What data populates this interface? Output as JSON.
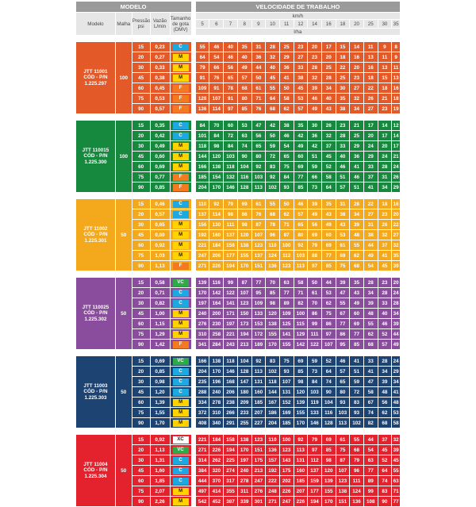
{
  "header": {
    "modelo_title": "MODELO",
    "velocidade_title": "VELOCIDADE DE TRABALHO",
    "col_modelo": "Modelo",
    "col_malha": "Malha",
    "col_pressao": "Pressão psi",
    "col_vazao": "Vazão L/min",
    "col_gota": "Tamanho de gota (DMV)",
    "speed_unit": "km/h",
    "rate_unit": "l/ha",
    "speeds": [
      "5",
      "6",
      "7",
      "8",
      "9",
      "10",
      "11",
      "12",
      "14",
      "16",
      "18",
      "20",
      "25",
      "30",
      "35"
    ]
  },
  "colors": {
    "droplet": {
      "XC": "#ffffff",
      "VC": "#2eaa48",
      "C": "#1ea8e0",
      "M": "#ffd200",
      "F": "#f47a21"
    },
    "droplet_text": {
      "XC": "#222222",
      "VC": "#ffffff",
      "C": "#ffffff",
      "M": "#222222",
      "F": "#ffffff"
    }
  },
  "groups": [
    {
      "model": "JTT 11001 CÓD - P/N 1.225.297",
      "malha": "100",
      "color": "#e35a28",
      "rows": [
        {
          "psi": "15",
          "lmin": "0,23",
          "gota": "C",
          "values": [
            "55",
            "46",
            "40",
            "35",
            "31",
            "28",
            "25",
            "23",
            "20",
            "17",
            "15",
            "14",
            "11",
            "9",
            "8"
          ]
        },
        {
          "psi": "20",
          "lmin": "0,27",
          "gota": "M",
          "values": [
            "64",
            "54",
            "46",
            "40",
            "36",
            "32",
            "29",
            "27",
            "23",
            "20",
            "18",
            "16",
            "13",
            "11",
            "9"
          ]
        },
        {
          "psi": "30",
          "lmin": "0,33",
          "gota": "M",
          "values": [
            "79",
            "66",
            "56",
            "49",
            "44",
            "40",
            "36",
            "33",
            "28",
            "25",
            "22",
            "20",
            "16",
            "13",
            "11"
          ]
        },
        {
          "psi": "45",
          "lmin": "0,38",
          "gota": "M",
          "values": [
            "91",
            "76",
            "65",
            "57",
            "50",
            "45",
            "41",
            "38",
            "32",
            "28",
            "25",
            "23",
            "18",
            "15",
            "13"
          ]
        },
        {
          "psi": "60",
          "lmin": "0,45",
          "gota": "F",
          "values": [
            "109",
            "91",
            "78",
            "68",
            "61",
            "55",
            "50",
            "45",
            "39",
            "34",
            "30",
            "27",
            "22",
            "18",
            "16"
          ]
        },
        {
          "psi": "75",
          "lmin": "0,53",
          "gota": "F",
          "values": [
            "128",
            "107",
            "91",
            "80",
            "71",
            "64",
            "58",
            "53",
            "46",
            "40",
            "35",
            "32",
            "26",
            "21",
            "18"
          ]
        },
        {
          "psi": "90",
          "lmin": "0,57",
          "gota": "F",
          "values": [
            "136",
            "114",
            "97",
            "85",
            "76",
            "68",
            "62",
            "57",
            "49",
            "43",
            "38",
            "34",
            "27",
            "23",
            "19"
          ]
        }
      ]
    },
    {
      "model": "JTT 110015 CÓD - P/N 1.225.300",
      "malha": "100",
      "color": "#17893e",
      "rows": [
        {
          "psi": "15",
          "lmin": "0,35",
          "gota": "C",
          "values": [
            "84",
            "70",
            "60",
            "53",
            "47",
            "42",
            "38",
            "35",
            "30",
            "26",
            "23",
            "21",
            "17",
            "14",
            "12"
          ]
        },
        {
          "psi": "20",
          "lmin": "0,42",
          "gota": "C",
          "values": [
            "101",
            "84",
            "72",
            "63",
            "56",
            "50",
            "46",
            "42",
            "36",
            "32",
            "28",
            "25",
            "20",
            "17",
            "14"
          ]
        },
        {
          "psi": "30",
          "lmin": "0,49",
          "gota": "M",
          "values": [
            "118",
            "98",
            "84",
            "74",
            "65",
            "59",
            "54",
            "49",
            "42",
            "37",
            "33",
            "29",
            "24",
            "20",
            "17"
          ]
        },
        {
          "psi": "45",
          "lmin": "0,60",
          "gota": "M",
          "values": [
            "144",
            "120",
            "103",
            "90",
            "80",
            "72",
            "65",
            "60",
            "51",
            "45",
            "40",
            "36",
            "29",
            "24",
            "21"
          ]
        },
        {
          "psi": "60",
          "lmin": "0,69",
          "gota": "M",
          "values": [
            "166",
            "138",
            "118",
            "104",
            "92",
            "83",
            "75",
            "69",
            "59",
            "52",
            "46",
            "41",
            "33",
            "28",
            "24"
          ]
        },
        {
          "psi": "75",
          "lmin": "0,77",
          "gota": "F",
          "values": [
            "185",
            "154",
            "132",
            "116",
            "103",
            "92",
            "84",
            "77",
            "66",
            "58",
            "51",
            "46",
            "37",
            "31",
            "26"
          ]
        },
        {
          "psi": "90",
          "lmin": "0,85",
          "gota": "F",
          "values": [
            "204",
            "170",
            "146",
            "128",
            "113",
            "102",
            "93",
            "85",
            "73",
            "64",
            "57",
            "51",
            "41",
            "34",
            "29"
          ]
        }
      ]
    },
    {
      "model": "JTT 11002 CÓD - P/N 1.225.301",
      "malha": "50",
      "color": "#f4a81c",
      "rows": [
        {
          "psi": "15",
          "lmin": "0,46",
          "gota": "C",
          "values": [
            "110",
            "92",
            "79",
            "69",
            "61",
            "55",
            "50",
            "46",
            "39",
            "35",
            "31",
            "28",
            "22",
            "18",
            "16"
          ]
        },
        {
          "psi": "20",
          "lmin": "0,57",
          "gota": "C",
          "values": [
            "137",
            "114",
            "98",
            "86",
            "76",
            "68",
            "62",
            "57",
            "49",
            "43",
            "38",
            "34",
            "27",
            "23",
            "20"
          ]
        },
        {
          "psi": "30",
          "lmin": "0,65",
          "gota": "M",
          "values": [
            "156",
            "130",
            "111",
            "98",
            "87",
            "78",
            "71",
            "65",
            "56",
            "49",
            "43",
            "39",
            "31",
            "26",
            "22"
          ]
        },
        {
          "psi": "45",
          "lmin": "0,80",
          "gota": "M",
          "values": [
            "192",
            "160",
            "137",
            "120",
            "107",
            "96",
            "87",
            "80",
            "69",
            "60",
            "53",
            "48",
            "38",
            "32",
            "27"
          ]
        },
        {
          "psi": "60",
          "lmin": "0,92",
          "gota": "M",
          "values": [
            "221",
            "184",
            "158",
            "138",
            "123",
            "110",
            "100",
            "92",
            "79",
            "69",
            "61",
            "55",
            "44",
            "37",
            "32"
          ]
        },
        {
          "psi": "75",
          "lmin": "1,03",
          "gota": "M",
          "values": [
            "247",
            "206",
            "177",
            "155",
            "137",
            "124",
            "112",
            "103",
            "88",
            "77",
            "69",
            "62",
            "49",
            "41",
            "35"
          ]
        },
        {
          "psi": "90",
          "lmin": "1,13",
          "gota": "F",
          "values": [
            "271",
            "226",
            "194",
            "170",
            "151",
            "136",
            "123",
            "113",
            "97",
            "85",
            "75",
            "68",
            "54",
            "45",
            "39"
          ]
        }
      ]
    },
    {
      "model": "JTT 110025 CÓD - P/N 1.225.302",
      "malha": "50",
      "color": "#8a4c9c",
      "rows": [
        {
          "psi": "15",
          "lmin": "0,58",
          "gota": "VC",
          "values": [
            "139",
            "116",
            "99",
            "87",
            "77",
            "70",
            "63",
            "58",
            "50",
            "44",
            "39",
            "35",
            "28",
            "23",
            "20"
          ]
        },
        {
          "psi": "20",
          "lmin": "0,71",
          "gota": "C",
          "values": [
            "170",
            "142",
            "122",
            "107",
            "95",
            "85",
            "77",
            "71",
            "61",
            "53",
            "47",
            "43",
            "34",
            "28",
            "24"
          ]
        },
        {
          "psi": "30",
          "lmin": "0,82",
          "gota": "C",
          "values": [
            "197",
            "164",
            "141",
            "123",
            "109",
            "98",
            "89",
            "82",
            "70",
            "62",
            "55",
            "49",
            "39",
            "33",
            "28"
          ]
        },
        {
          "psi": "45",
          "lmin": "1,00",
          "gota": "M",
          "values": [
            "240",
            "200",
            "171",
            "150",
            "133",
            "120",
            "109",
            "100",
            "86",
            "75",
            "67",
            "60",
            "48",
            "40",
            "34"
          ]
        },
        {
          "psi": "60",
          "lmin": "1,15",
          "gota": "M",
          "values": [
            "276",
            "230",
            "197",
            "173",
            "153",
            "138",
            "125",
            "115",
            "99",
            "86",
            "77",
            "69",
            "55",
            "46",
            "39"
          ]
        },
        {
          "psi": "75",
          "lmin": "1,29",
          "gota": "M",
          "values": [
            "310",
            "258",
            "221",
            "194",
            "172",
            "155",
            "141",
            "129",
            "111",
            "97",
            "86",
            "77",
            "62",
            "52",
            "44"
          ]
        },
        {
          "psi": "90",
          "lmin": "1,42",
          "gota": "F",
          "values": [
            "341",
            "284",
            "243",
            "213",
            "189",
            "170",
            "155",
            "142",
            "122",
            "107",
            "95",
            "85",
            "68",
            "57",
            "49"
          ]
        }
      ]
    },
    {
      "model": "JTT 11003 CÓD - P/N 1.225.303",
      "malha": "50",
      "color": "#1d4373",
      "rows": [
        {
          "psi": "15",
          "lmin": "0,69",
          "gota": "VC",
          "values": [
            "166",
            "138",
            "118",
            "104",
            "92",
            "83",
            "75",
            "69",
            "59",
            "52",
            "46",
            "41",
            "33",
            "28",
            "24"
          ]
        },
        {
          "psi": "20",
          "lmin": "0,85",
          "gota": "C",
          "values": [
            "204",
            "170",
            "146",
            "128",
            "113",
            "102",
            "93",
            "85",
            "73",
            "64",
            "57",
            "51",
            "41",
            "34",
            "29"
          ]
        },
        {
          "psi": "30",
          "lmin": "0,98",
          "gota": "C",
          "values": [
            "235",
            "196",
            "168",
            "147",
            "131",
            "118",
            "107",
            "98",
            "84",
            "74",
            "65",
            "59",
            "47",
            "39",
            "34"
          ]
        },
        {
          "psi": "45",
          "lmin": "1,20",
          "gota": "C",
          "values": [
            "288",
            "240",
            "206",
            "180",
            "160",
            "144",
            "131",
            "120",
            "103",
            "90",
            "80",
            "72",
            "58",
            "48",
            "41"
          ]
        },
        {
          "psi": "60",
          "lmin": "1,39",
          "gota": "M",
          "values": [
            "334",
            "278",
            "238",
            "209",
            "185",
            "167",
            "152",
            "139",
            "119",
            "104",
            "93",
            "83",
            "67",
            "56",
            "48"
          ]
        },
        {
          "psi": "75",
          "lmin": "1,55",
          "gota": "M",
          "values": [
            "372",
            "310",
            "266",
            "233",
            "207",
            "186",
            "169",
            "155",
            "133",
            "116",
            "103",
            "93",
            "74",
            "62",
            "53"
          ]
        },
        {
          "psi": "90",
          "lmin": "1,70",
          "gota": "M",
          "values": [
            "408",
            "340",
            "291",
            "255",
            "227",
            "204",
            "185",
            "170",
            "146",
            "128",
            "113",
            "102",
            "82",
            "68",
            "58"
          ]
        }
      ]
    },
    {
      "model": "JTT 11004 CÓD - P/N 1.225.304",
      "malha": "50",
      "color": "#e4222e",
      "rows": [
        {
          "psi": "15",
          "lmin": "0,92",
          "gota": "XC",
          "values": [
            "221",
            "184",
            "158",
            "138",
            "123",
            "110",
            "100",
            "92",
            "79",
            "69",
            "61",
            "55",
            "44",
            "37",
            "32"
          ]
        },
        {
          "psi": "20",
          "lmin": "1,13",
          "gota": "VC",
          "values": [
            "271",
            "226",
            "194",
            "170",
            "151",
            "136",
            "123",
            "113",
            "97",
            "85",
            "75",
            "68",
            "54",
            "45",
            "39"
          ]
        },
        {
          "psi": "30",
          "lmin": "1,31",
          "gota": "C",
          "values": [
            "314",
            "262",
            "225",
            "197",
            "175",
            "157",
            "143",
            "131",
            "112",
            "98",
            "87",
            "79",
            "63",
            "52",
            "45"
          ]
        },
        {
          "psi": "45",
          "lmin": "1,60",
          "gota": "C",
          "values": [
            "384",
            "320",
            "274",
            "240",
            "213",
            "192",
            "175",
            "160",
            "137",
            "120",
            "107",
            "96",
            "77",
            "64",
            "55"
          ]
        },
        {
          "psi": "60",
          "lmin": "1,85",
          "gota": "C",
          "values": [
            "444",
            "370",
            "317",
            "278",
            "247",
            "222",
            "202",
            "185",
            "159",
            "139",
            "123",
            "111",
            "89",
            "74",
            "63"
          ]
        },
        {
          "psi": "75",
          "lmin": "2,07",
          "gota": "M",
          "values": [
            "497",
            "414",
            "355",
            "311",
            "276",
            "248",
            "226",
            "207",
            "177",
            "155",
            "138",
            "124",
            "99",
            "83",
            "71"
          ]
        },
        {
          "psi": "90",
          "lmin": "2,26",
          "gota": "M",
          "values": [
            "542",
            "452",
            "387",
            "339",
            "301",
            "271",
            "247",
            "226",
            "194",
            "170",
            "151",
            "136",
            "108",
            "90",
            "77"
          ]
        }
      ]
    }
  ]
}
